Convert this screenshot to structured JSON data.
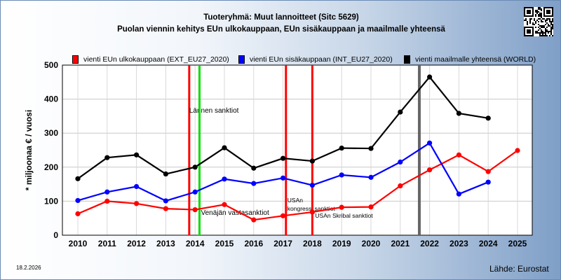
{
  "titles": {
    "line1": "Tuoteryhmä: Muut lannoitteet (Sitc 5629)",
    "line2": "Puolan viennin kehitys EUn ulkokauppaan, EUn sisäkauppaan ja maailmalle yhteensä"
  },
  "date": "18.2.2026",
  "source": "Lähde: Eurostat",
  "qr_icon": "qr-code-icon",
  "chart_data": {
    "type": "line",
    "ylabel": "* miljoonaa € / vuosi",
    "xlabel": "",
    "ylim": [
      0,
      500
    ],
    "yticks": [
      0,
      100,
      200,
      300,
      400,
      500
    ],
    "categories": [
      "2010",
      "2011",
      "2012",
      "2013",
      "2014",
      "2015",
      "2016",
      "2017",
      "2018",
      "2019",
      "2020",
      "2021",
      "2022",
      "2023",
      "2024",
      "2025"
    ],
    "series": [
      {
        "name": "vienti EUn ulkokauppaan (EXT_EU27_2020)",
        "color": "#ff0000",
        "values": [
          63,
          100,
          93,
          78,
          75,
          90,
          45,
          57,
          68,
          82,
          83,
          145,
          192,
          236,
          187,
          249
        ]
      },
      {
        "name": "vienti EUn sisäkauppaan (INT_EU27_2020)",
        "color": "#0000ff",
        "values": [
          102,
          127,
          143,
          101,
          127,
          165,
          152,
          168,
          147,
          177,
          170,
          215,
          271,
          121,
          156,
          null
        ]
      },
      {
        "name": "vienti maailmalle yhteensä (WORLD)",
        "color": "#000000",
        "values": [
          166,
          228,
          236,
          180,
          200,
          257,
          197,
          226,
          218,
          256,
          255,
          362,
          465,
          358,
          344,
          null
        ]
      }
    ],
    "markers": [
      {
        "x": 2013.8,
        "color": "#ff0000",
        "label": "Lännen sanktiot"
      },
      {
        "x": 2014.15,
        "color": "#00dd00",
        "label": "Venäjän vastasanktiot"
      },
      {
        "x": 2017.1,
        "color": "#ff0000",
        "label": "USAn kongressi sanktiot"
      },
      {
        "x": 2018.0,
        "color": "#ff0000",
        "label": "USAn Skribal sanktiot"
      },
      {
        "x": 2021.65,
        "color": "#666666",
        "label": ""
      }
    ],
    "grid": true,
    "legend": "top"
  }
}
